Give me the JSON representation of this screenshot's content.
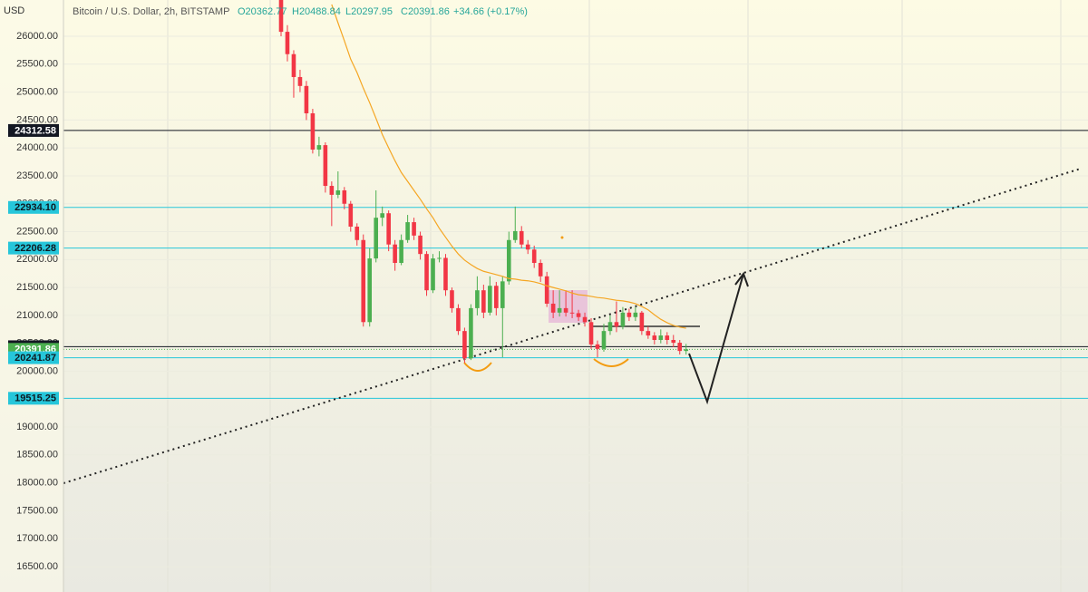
{
  "header": {
    "currency": "USD",
    "symbol": "Bitcoin / U.S. Dollar, 2h, BITSTAMP",
    "open": "O20362.77",
    "high": "H20488.84",
    "low": "L20297.95",
    "close": "C20391.86",
    "change": "+34.66 (+0.17%)"
  },
  "chart_data": {
    "type": "candlestick",
    "up_color": "#4caf50",
    "down_color": "#f23645",
    "open": [
      26650,
      26080,
      25680,
      25270,
      25110,
      24620,
      23970,
      24050,
      23320,
      23160,
      23240,
      23000,
      22590,
      22350,
      20880,
      22020,
      22750,
      22830,
      22270,
      21940,
      22350,
      22670,
      22430,
      22100,
      21450,
      22020,
      22030,
      21450,
      21130,
      20720,
      20230,
      21130,
      21450,
      21050,
      21530,
      21130,
      21610,
      22350,
      22510,
      22270,
      22180,
      21940,
      21700,
      21210,
      21050,
      21130,
      21050,
      21040,
      20970,
      20880,
      20480,
      20400,
      20720,
      20880,
      20800,
      21050,
      20970,
      21050,
      20720,
      20640,
      20560,
      20640,
      20560,
      20510,
      20362.77
    ],
    "high": [
      26700,
      26200,
      25750,
      25400,
      25200,
      24700,
      24200,
      24100,
      23400,
      23580,
      23300,
      23050,
      22650,
      22450,
      22200,
      23240,
      22950,
      22880,
      22350,
      22450,
      22800,
      22750,
      22500,
      22150,
      22100,
      22150,
      22100,
      21500,
      21200,
      20780,
      21200,
      21700,
      21550,
      21700,
      21600,
      21700,
      22500,
      22950,
      22600,
      22350,
      22250,
      22000,
      21780,
      21450,
      21450,
      21450,
      21450,
      21100,
      21050,
      20950,
      20550,
      20850,
      21000,
      21250,
      21150,
      21120,
      21150,
      21080,
      20800,
      20700,
      20750,
      20700,
      20650,
      20560,
      20488.84
    ],
    "low": [
      26000,
      25550,
      24900,
      25000,
      24500,
      23900,
      23850,
      23200,
      22600,
      23100,
      22900,
      22500,
      22250,
      20800,
      20800,
      21950,
      22600,
      22150,
      21800,
      21900,
      22300,
      22350,
      22000,
      21350,
      21400,
      21950,
      21350,
      21050,
      20650,
      20150,
      20200,
      21000,
      20950,
      21000,
      21000,
      20250,
      21550,
      22300,
      22200,
      22100,
      21850,
      21600,
      21150,
      20950,
      20980,
      20980,
      20950,
      20900,
      20800,
      20400,
      20250,
      20350,
      20650,
      20700,
      20750,
      20900,
      20900,
      20650,
      20580,
      20480,
      20500,
      20480,
      20430,
      20300,
      20297.95
    ],
    "close": [
      26080,
      25680,
      25270,
      25110,
      24620,
      23970,
      24050,
      23320,
      23160,
      23240,
      23000,
      22590,
      22350,
      20880,
      22020,
      22750,
      22830,
      22270,
      21940,
      22350,
      22670,
      22430,
      22100,
      21450,
      22020,
      22030,
      21450,
      21130,
      20720,
      20230,
      21130,
      21450,
      21050,
      21530,
      21130,
      21610,
      22350,
      22510,
      22270,
      22180,
      21940,
      21700,
      21210,
      21050,
      21130,
      21050,
      21040,
      20970,
      20880,
      20480,
      20400,
      20720,
      20880,
      20800,
      21050,
      20970,
      21050,
      20720,
      20640,
      20560,
      20640,
      20560,
      20510,
      20363,
      20391.86
    ],
    "ma": {
      "color": "#f5a623",
      "values": [
        null,
        null,
        null,
        null,
        null,
        null,
        null,
        null,
        26570,
        26240,
        25920,
        25590,
        25350,
        25070,
        24810,
        24530,
        24240,
        24000,
        23770,
        23560,
        23400,
        23240,
        23080,
        22910,
        22750,
        22560,
        22400,
        22240,
        22100,
        21990,
        21910,
        21840,
        21790,
        21760,
        21730,
        21700,
        21660,
        21650,
        21630,
        21620,
        21600,
        21570,
        21530,
        21500,
        21470,
        21440,
        21400,
        21370,
        21360,
        21340,
        21320,
        21310,
        21290,
        21270,
        21260,
        21240,
        21210,
        21160,
        21100,
        21010,
        20930,
        20870,
        20820,
        20790,
        20770
      ]
    },
    "levels": [
      {
        "value": 24312.58,
        "color": "#131722"
      },
      {
        "value": 22934.1,
        "label": "22934.10",
        "color": "#26c6da"
      },
      {
        "value": 22206.28,
        "color": "#26c6da"
      },
      {
        "value": 20439.06,
        "color": "#131722"
      },
      {
        "value": 20391.86,
        "color": "#4caf50"
      },
      {
        "value": 20241.87,
        "color": "#26c6da"
      },
      {
        "value": 19515.25,
        "color": "#26c6da"
      }
    ],
    "ylim": [
      16045,
      26650
    ],
    "yticks": [
      {
        "value": 16500,
        "label": "16500.00"
      },
      {
        "value": 17000,
        "label": "17000.00"
      },
      {
        "value": 17500,
        "label": "17500.00"
      },
      {
        "value": 18000,
        "label": "18000.00"
      },
      {
        "value": 18500,
        "label": "18500.00"
      },
      {
        "value": 19000,
        "label": "19000.00"
      },
      {
        "value": 19500,
        "label": "19500.00"
      },
      {
        "value": 20000,
        "label": "20000.00"
      },
      {
        "value": 20500,
        "label": "20500.00"
      },
      {
        "value": 21000,
        "label": "21000.00"
      },
      {
        "value": 21500,
        "label": "21500.00"
      },
      {
        "value": 22000,
        "label": "22000.00"
      },
      {
        "value": 22500,
        "label": "22500.00"
      },
      {
        "value": 23000,
        "label": "23000.00"
      },
      {
        "value": 23500,
        "label": "23500.00"
      },
      {
        "value": 24000,
        "label": "24000.00"
      },
      {
        "value": 24500,
        "label": "24500.00"
      },
      {
        "value": 25000,
        "label": "25000.00"
      },
      {
        "value": 25500,
        "label": "25500.00"
      },
      {
        "value": 26000,
        "label": "26000.00"
      }
    ]
  }
}
